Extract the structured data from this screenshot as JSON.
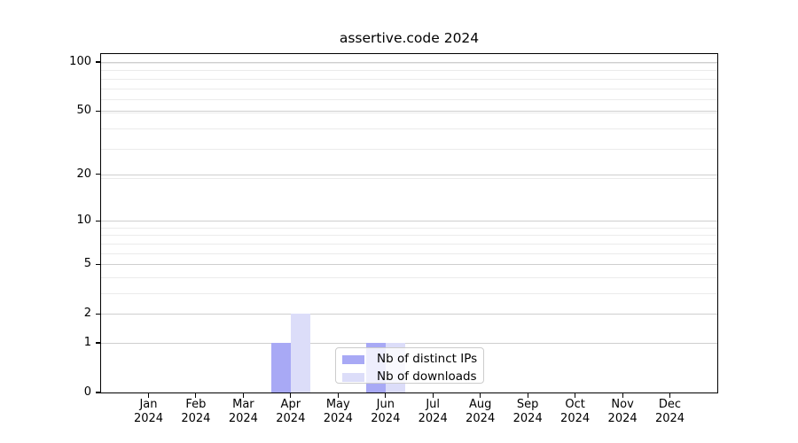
{
  "chart_data": {
    "type": "bar",
    "title": "assertive.code 2024",
    "categories": [
      "Jan",
      "Feb",
      "Mar",
      "Apr",
      "May",
      "Jun",
      "Jul",
      "Aug",
      "Sep",
      "Oct",
      "Nov",
      "Dec"
    ],
    "x_year_label": "2024",
    "series": [
      {
        "name": "Nb of distinct IPs",
        "color": "#a8a9f5",
        "values": [
          0,
          0,
          0,
          1,
          0,
          1,
          0,
          0,
          0,
          0,
          0,
          0
        ]
      },
      {
        "name": "Nb of downloads",
        "color": "#dcddf9",
        "values": [
          0,
          0,
          0,
          2,
          0,
          1,
          0,
          0,
          0,
          0,
          0,
          0
        ]
      }
    ],
    "y_axis": {
      "scale": "log10(1+y)",
      "tick_values": [
        0,
        1,
        2,
        5,
        10,
        20,
        50,
        100
      ],
      "minor_grid_positions_1plusY": [
        4,
        5,
        7,
        8,
        9,
        10,
        20,
        30,
        40,
        50,
        60,
        70,
        80,
        90,
        100
      ],
      "top_value_approx": 113
    },
    "legend": {
      "entries": [
        "Nb of distinct IPs",
        "Nb of downloads"
      ],
      "location": "lower center"
    },
    "grid": {
      "orientation": "horizontal",
      "major_color": "#cfcfcf",
      "minor_color": "#ebebeb"
    },
    "colors": {
      "background": "#ffffff",
      "spine": "#000000",
      "text": "#000000"
    }
  }
}
